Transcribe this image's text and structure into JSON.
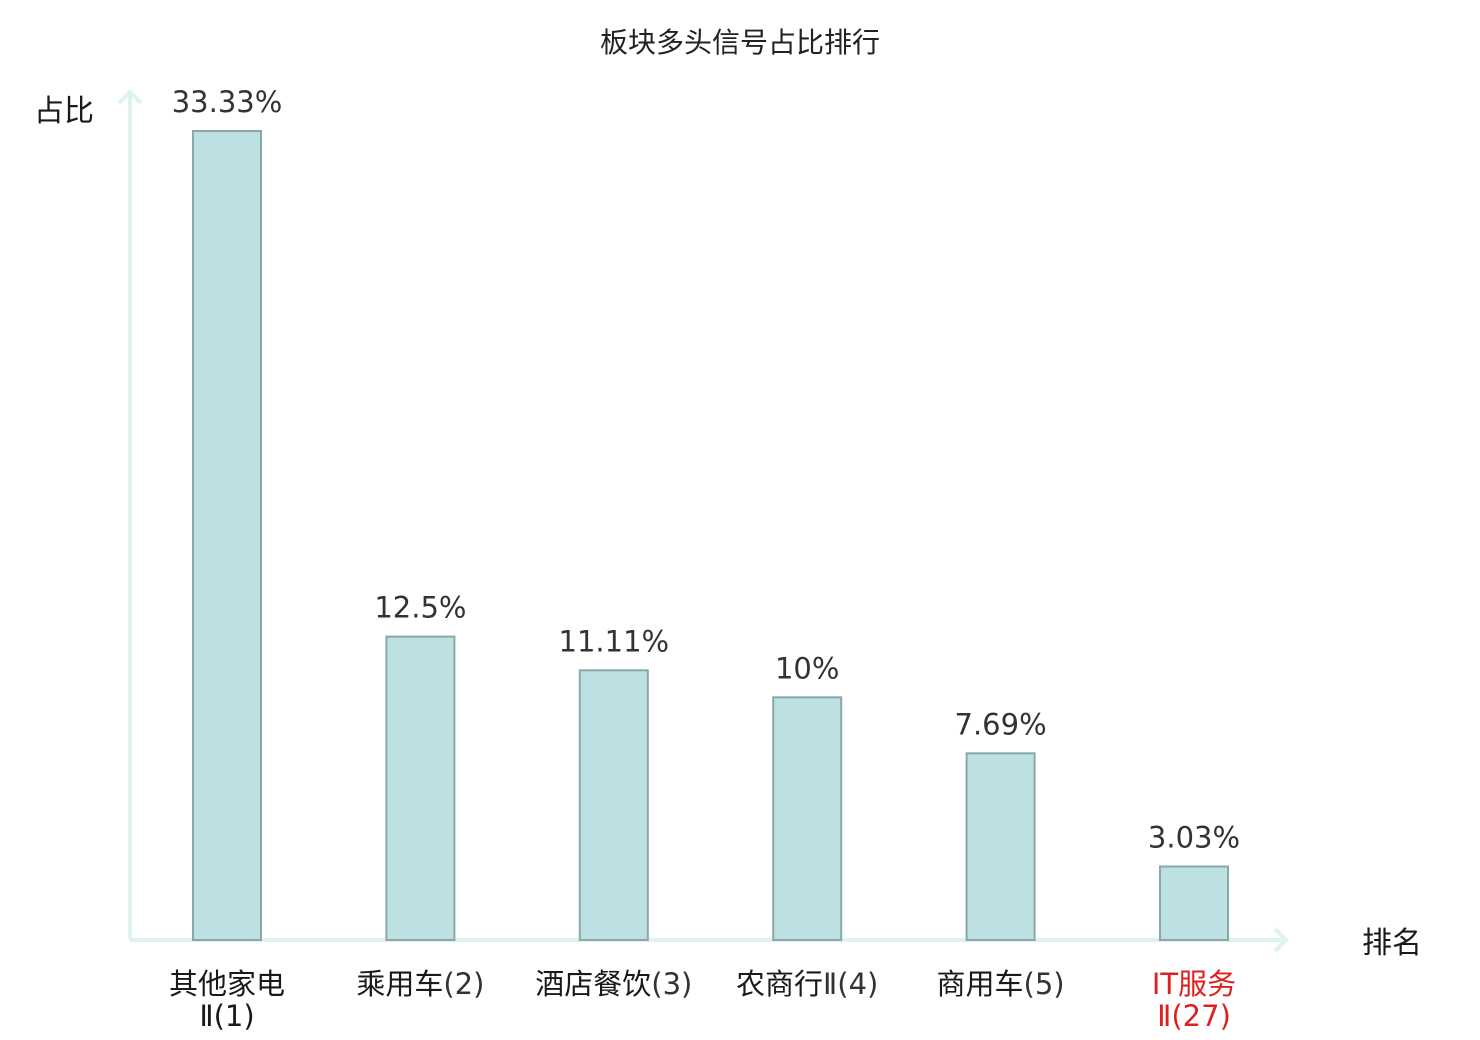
{
  "chart_data": {
    "type": "bar",
    "title": "板块多头信号占比排行",
    "ylabel": "占比",
    "xlabel": "排名",
    "categories": [
      {
        "name": "其他家电",
        "rank": "Ⅱ(1)",
        "highlight": false,
        "layout": "wrap"
      },
      {
        "name": "乘用车",
        "rank": "(2)",
        "highlight": false,
        "layout": "inline"
      },
      {
        "name": "酒店餐饮",
        "rank": "(3)",
        "highlight": false,
        "layout": "inline"
      },
      {
        "name": "农商行",
        "rank": "Ⅱ(4)",
        "highlight": false,
        "layout": "inline"
      },
      {
        "name": "商用车",
        "rank": "(5)",
        "highlight": false,
        "layout": "inline"
      },
      {
        "name": "IT服务",
        "rank": "Ⅱ(27)",
        "highlight": true,
        "layout": "wrap"
      }
    ],
    "values": [
      33.33,
      12.5,
      11.11,
      10,
      7.69,
      3.03
    ],
    "data_labels": [
      "33.33%",
      "12.5%",
      "11.11%",
      "10%",
      "7.69%",
      "3.03%"
    ],
    "ylim": [
      0,
      33.33
    ],
    "grid": false,
    "colors": {
      "bar_fill": "#bde0e3",
      "bar_stroke": "#8aa7a9",
      "axis": "#e0f2ef",
      "highlight_text": "#e02020",
      "text": "#1a1a1a"
    }
  }
}
